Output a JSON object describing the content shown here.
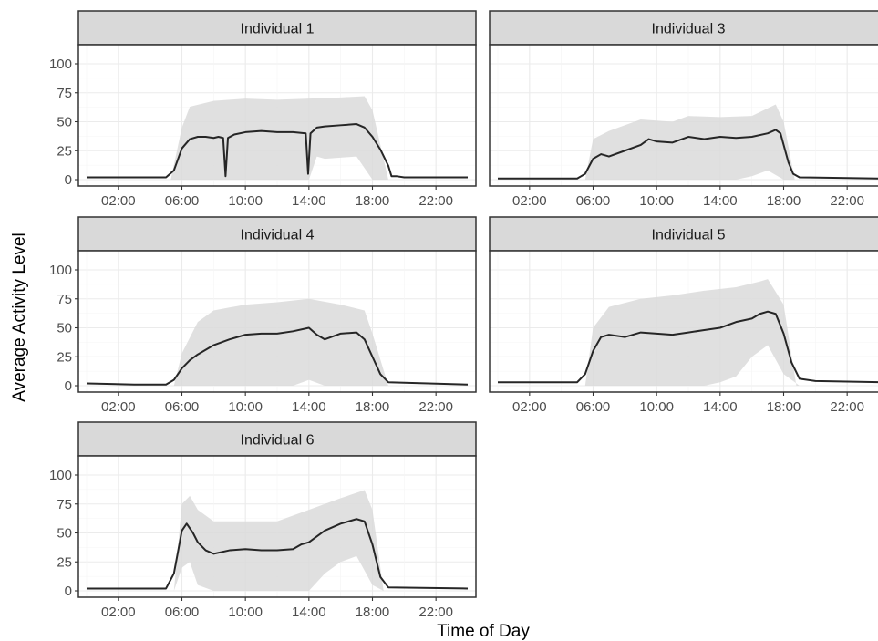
{
  "chart_data": {
    "type": "line",
    "subtype": "faceted line with shaded range",
    "xlabel": "Time of Day",
    "ylabel": "Average Activity Level",
    "x_tick_labels": [
      "02:00",
      "06:00",
      "10:00",
      "14:00",
      "18:00",
      "22:00"
    ],
    "x_ticks_hours": [
      2,
      6,
      10,
      14,
      18,
      22
    ],
    "xlim_hours": [
      0,
      24
    ],
    "y_ticks": [
      0,
      25,
      50,
      75,
      100
    ],
    "ylim": [
      0,
      100
    ],
    "grid": true,
    "colors": {
      "line": "#262626",
      "band": "#dadada",
      "strip_bg": "#d9d9d9",
      "panel_border": "#333333",
      "grid_major": "#ebebeb",
      "grid_minor": "#f5f5f5"
    },
    "panels": [
      {
        "title": "Individual 1",
        "mean": [
          [
            0,
            2
          ],
          [
            3,
            2
          ],
          [
            5,
            2
          ],
          [
            5.5,
            8
          ],
          [
            6,
            27
          ],
          [
            6.5,
            35
          ],
          [
            7,
            37
          ],
          [
            7.5,
            37
          ],
          [
            8,
            36
          ],
          [
            8.3,
            37
          ],
          [
            8.6,
            36
          ],
          [
            8.75,
            3
          ],
          [
            8.9,
            36
          ],
          [
            9.3,
            39
          ],
          [
            10,
            41
          ],
          [
            11,
            42
          ],
          [
            12,
            41
          ],
          [
            13,
            41
          ],
          [
            13.8,
            40
          ],
          [
            13.95,
            5
          ],
          [
            14.1,
            40
          ],
          [
            14.5,
            45
          ],
          [
            15,
            46
          ],
          [
            16,
            47
          ],
          [
            17,
            48
          ],
          [
            17.5,
            45
          ],
          [
            18,
            37
          ],
          [
            18.5,
            26
          ],
          [
            19,
            12
          ],
          [
            19.2,
            3
          ],
          [
            19.5,
            3
          ],
          [
            20,
            2
          ],
          [
            24,
            2
          ]
        ],
        "lower": [
          [
            0,
            0
          ],
          [
            5.3,
            0
          ],
          [
            6,
            0
          ],
          [
            8,
            0
          ],
          [
            10,
            0
          ],
          [
            12,
            0
          ],
          [
            14,
            0
          ],
          [
            14.5,
            20
          ],
          [
            15,
            18
          ],
          [
            17,
            20
          ],
          [
            18,
            0
          ],
          [
            24,
            0
          ]
        ],
        "upper": [
          [
            5.3,
            0
          ],
          [
            6,
            45
          ],
          [
            6.5,
            63
          ],
          [
            8,
            68
          ],
          [
            10,
            70
          ],
          [
            12,
            69
          ],
          [
            14,
            70
          ],
          [
            16,
            71
          ],
          [
            17.5,
            72
          ],
          [
            18,
            60
          ],
          [
            19,
            0
          ]
        ]
      },
      {
        "title": "Individual 3",
        "mean": [
          [
            0,
            1
          ],
          [
            4,
            1
          ],
          [
            5,
            1
          ],
          [
            5.5,
            5
          ],
          [
            6,
            18
          ],
          [
            6.5,
            22
          ],
          [
            7,
            20
          ],
          [
            8,
            25
          ],
          [
            9,
            30
          ],
          [
            9.5,
            35
          ],
          [
            10,
            33
          ],
          [
            11,
            32
          ],
          [
            12,
            37
          ],
          [
            13,
            35
          ],
          [
            14,
            37
          ],
          [
            15,
            36
          ],
          [
            16,
            37
          ],
          [
            17,
            40
          ],
          [
            17.5,
            43
          ],
          [
            17.8,
            40
          ],
          [
            18,
            30
          ],
          [
            18.3,
            15
          ],
          [
            18.6,
            5
          ],
          [
            19,
            2
          ],
          [
            24,
            1
          ]
        ],
        "lower": [
          [
            0,
            0
          ],
          [
            5.5,
            0
          ],
          [
            8,
            0
          ],
          [
            10,
            0
          ],
          [
            12,
            0
          ],
          [
            15,
            0
          ],
          [
            16,
            3
          ],
          [
            17,
            8
          ],
          [
            18,
            0
          ],
          [
            24,
            0
          ]
        ],
        "upper": [
          [
            5.5,
            0
          ],
          [
            6,
            35
          ],
          [
            7,
            42
          ],
          [
            9,
            52
          ],
          [
            11,
            50
          ],
          [
            12,
            55
          ],
          [
            14,
            54
          ],
          [
            16,
            55
          ],
          [
            17.5,
            65
          ],
          [
            18,
            50
          ],
          [
            18.7,
            0
          ]
        ]
      },
      {
        "title": "Individual 4",
        "mean": [
          [
            0,
            2
          ],
          [
            3,
            1
          ],
          [
            5,
            1
          ],
          [
            5.5,
            5
          ],
          [
            6,
            15
          ],
          [
            6.5,
            22
          ],
          [
            7,
            27
          ],
          [
            8,
            35
          ],
          [
            9,
            40
          ],
          [
            10,
            44
          ],
          [
            11,
            45
          ],
          [
            12,
            45
          ],
          [
            13,
            47
          ],
          [
            14,
            50
          ],
          [
            14.5,
            44
          ],
          [
            15,
            40
          ],
          [
            16,
            45
          ],
          [
            17,
            46
          ],
          [
            17.5,
            40
          ],
          [
            18,
            25
          ],
          [
            18.5,
            10
          ],
          [
            19,
            3
          ],
          [
            24,
            1
          ]
        ],
        "lower": [
          [
            0,
            0
          ],
          [
            5.5,
            0
          ],
          [
            10,
            0
          ],
          [
            13,
            0
          ],
          [
            14,
            5
          ],
          [
            15,
            0
          ],
          [
            18,
            0
          ],
          [
            24,
            0
          ]
        ],
        "upper": [
          [
            5.5,
            0
          ],
          [
            6,
            28
          ],
          [
            7,
            55
          ],
          [
            8,
            65
          ],
          [
            10,
            70
          ],
          [
            12,
            72
          ],
          [
            14,
            75
          ],
          [
            16,
            70
          ],
          [
            17.5,
            65
          ],
          [
            18,
            45
          ],
          [
            19,
            0
          ]
        ]
      },
      {
        "title": "Individual 5",
        "mean": [
          [
            0,
            3
          ],
          [
            3,
            3
          ],
          [
            5,
            3
          ],
          [
            5.5,
            10
          ],
          [
            6,
            30
          ],
          [
            6.5,
            42
          ],
          [
            7,
            44
          ],
          [
            8,
            42
          ],
          [
            9,
            46
          ],
          [
            10,
            45
          ],
          [
            11,
            44
          ],
          [
            12,
            46
          ],
          [
            13,
            48
          ],
          [
            14,
            50
          ],
          [
            15,
            55
          ],
          [
            16,
            58
          ],
          [
            16.5,
            62
          ],
          [
            17,
            64
          ],
          [
            17.5,
            62
          ],
          [
            18,
            45
          ],
          [
            18.5,
            20
          ],
          [
            19,
            6
          ],
          [
            20,
            4
          ],
          [
            24,
            3
          ]
        ],
        "lower": [
          [
            0,
            0
          ],
          [
            5.5,
            0
          ],
          [
            8,
            0
          ],
          [
            11,
            0
          ],
          [
            13,
            0
          ],
          [
            14,
            3
          ],
          [
            15,
            8
          ],
          [
            16,
            25
          ],
          [
            17,
            35
          ],
          [
            18,
            10
          ],
          [
            19,
            0
          ],
          [
            24,
            0
          ]
        ],
        "upper": [
          [
            5.5,
            0
          ],
          [
            6,
            50
          ],
          [
            7,
            68
          ],
          [
            9,
            75
          ],
          [
            11,
            78
          ],
          [
            13,
            82
          ],
          [
            15,
            85
          ],
          [
            16.5,
            90
          ],
          [
            17,
            92
          ],
          [
            18,
            70
          ],
          [
            18.8,
            0
          ]
        ]
      },
      {
        "title": "Individual 6",
        "mean": [
          [
            0,
            2
          ],
          [
            3,
            2
          ],
          [
            5,
            2
          ],
          [
            5.5,
            15
          ],
          [
            6,
            52
          ],
          [
            6.3,
            58
          ],
          [
            6.7,
            50
          ],
          [
            7,
            42
          ],
          [
            7.5,
            35
          ],
          [
            8,
            32
          ],
          [
            9,
            35
          ],
          [
            10,
            36
          ],
          [
            11,
            35
          ],
          [
            12,
            35
          ],
          [
            13,
            36
          ],
          [
            13.5,
            40
          ],
          [
            14,
            42
          ],
          [
            15,
            52
          ],
          [
            16,
            58
          ],
          [
            17,
            62
          ],
          [
            17.5,
            60
          ],
          [
            18,
            40
          ],
          [
            18.5,
            12
          ],
          [
            19,
            3
          ],
          [
            24,
            2
          ]
        ],
        "lower": [
          [
            0,
            0
          ],
          [
            5.5,
            0
          ],
          [
            6,
            20
          ],
          [
            6.5,
            25
          ],
          [
            7,
            5
          ],
          [
            8,
            0
          ],
          [
            12,
            0
          ],
          [
            14,
            0
          ],
          [
            15,
            15
          ],
          [
            16,
            25
          ],
          [
            17,
            30
          ],
          [
            18,
            5
          ],
          [
            18.7,
            0
          ],
          [
            24,
            0
          ]
        ],
        "upper": [
          [
            5.5,
            0
          ],
          [
            6,
            75
          ],
          [
            6.5,
            82
          ],
          [
            7,
            70
          ],
          [
            8,
            60
          ],
          [
            10,
            60
          ],
          [
            12,
            60
          ],
          [
            14,
            70
          ],
          [
            16,
            80
          ],
          [
            17.5,
            87
          ],
          [
            18,
            70
          ],
          [
            18.7,
            0
          ]
        ]
      }
    ]
  }
}
